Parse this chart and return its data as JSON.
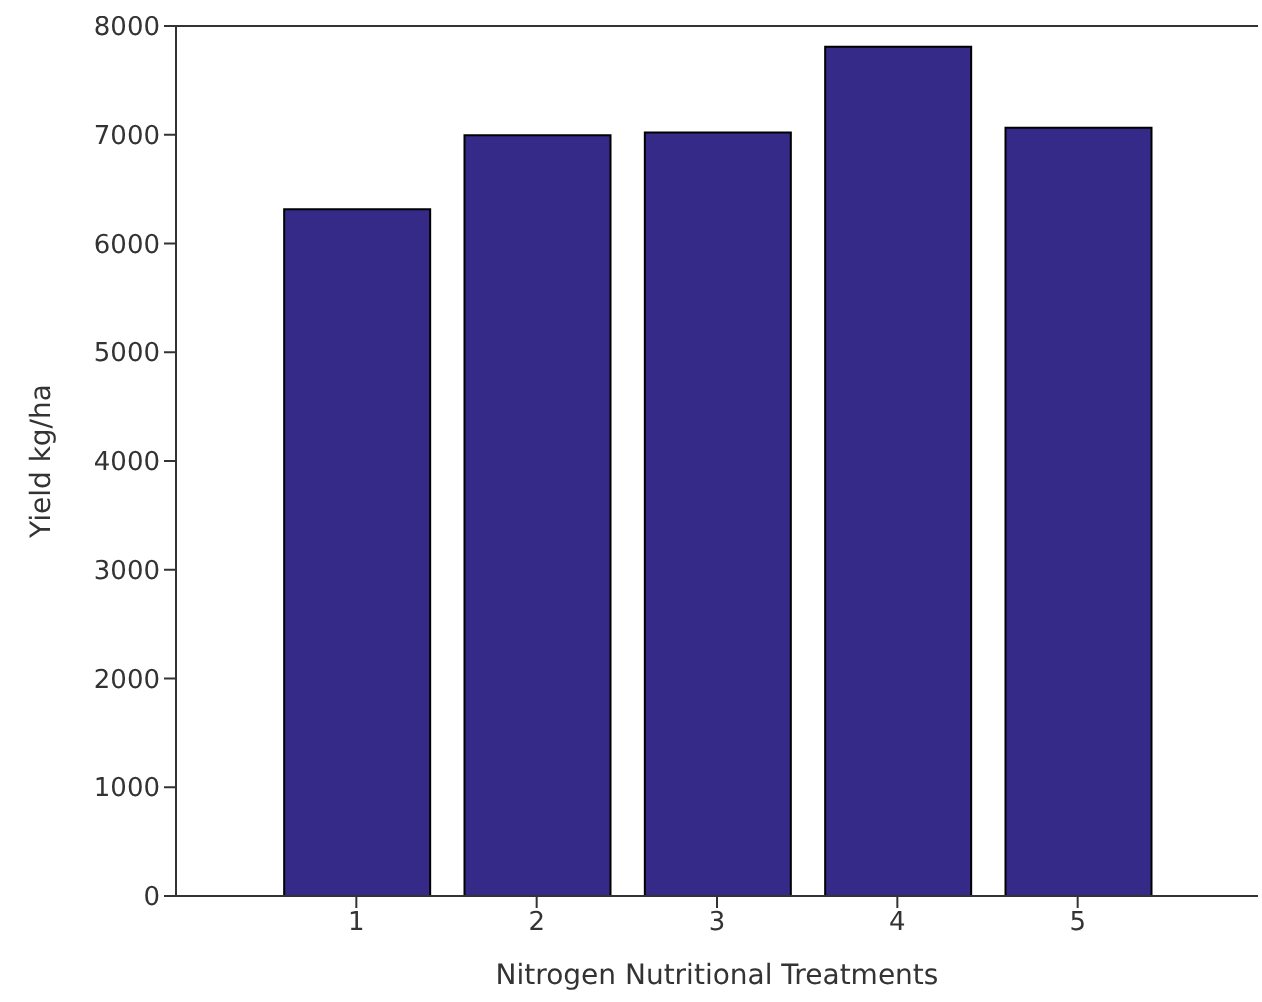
{
  "chart_data": {
    "type": "bar",
    "xlabel": "Nitrogen Nutritional Treatments",
    "ylabel": "Yield kg/ha",
    "x": [
      1,
      2,
      3,
      4,
      5
    ],
    "values": [
      6315,
      6995,
      7020,
      7810,
      7065
    ],
    "color": "#352a87",
    "xlim": [
      0,
      6
    ],
    "xticks": [
      1,
      2,
      3,
      4,
      5
    ],
    "ylim": [
      0,
      8000
    ],
    "yticks": [
      0,
      1000,
      2000,
      3000,
      4000,
      5000,
      6000,
      7000,
      8000
    ],
    "grid": false,
    "legend": false
  }
}
